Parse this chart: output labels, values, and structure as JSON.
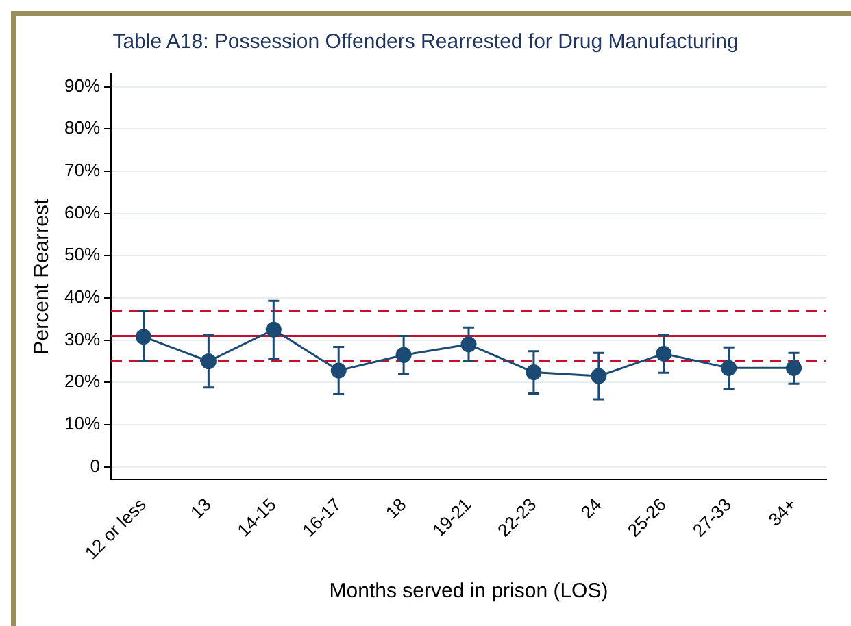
{
  "chart_data": {
    "type": "line",
    "title": "Table A18: Possession Offenders Rearrested for Drug Manufacturing",
    "xlabel": "Months served in prison (LOS)",
    "ylabel": "Percent Rearrest",
    "categories": [
      "12 or less",
      "13",
      "14-15",
      "16-17",
      "18",
      "19-21",
      "22-23",
      "24",
      "25-26",
      "27-33",
      "34+"
    ],
    "series": [
      {
        "color": "#1b4a74",
        "values": [
          30.8,
          25,
          32.5,
          22.8,
          26.5,
          29,
          22.4,
          21.5,
          26.8,
          23.4,
          23.4
        ],
        "errors": [
          [
            25,
            37
          ],
          [
            18.8,
            31.2
          ],
          [
            25.5,
            39.3
          ],
          [
            17.2,
            28.4
          ],
          [
            22,
            31
          ],
          [
            25,
            33
          ],
          [
            17.4,
            27.4
          ],
          [
            16,
            27
          ],
          [
            22.3,
            31.3
          ],
          [
            18.4,
            28.3
          ],
          [
            19.7,
            27
          ]
        ]
      }
    ],
    "ylim": [
      -3,
      93
    ],
    "yticks": [
      0,
      {
        "value": 10,
        "label": "10%"
      },
      {
        "value": 20,
        "label": "20%"
      },
      {
        "value": 30,
        "label": "30%"
      },
      {
        "value": 40,
        "label": "40%"
      },
      {
        "value": 50,
        "label": "50%"
      },
      {
        "value": 60,
        "label": "60%"
      },
      {
        "value": 70,
        "label": "70%"
      },
      {
        "value": 80,
        "label": "80%"
      },
      {
        "value": 90,
        "label": "90%"
      }
    ],
    "ref_lines": [
      {
        "axis": "y",
        "value": 31,
        "color": "#c8102e",
        "line_style": "solid"
      },
      {
        "axis": "y",
        "value": 37,
        "color": "#c8102e",
        "line_style": "dashed"
      },
      {
        "axis": "y",
        "value": 25,
        "color": "#c8102e",
        "line_style": "dashed"
      }
    ],
    "grid": "y",
    "legend": false,
    "marker": "circle",
    "line_style": "solid"
  }
}
